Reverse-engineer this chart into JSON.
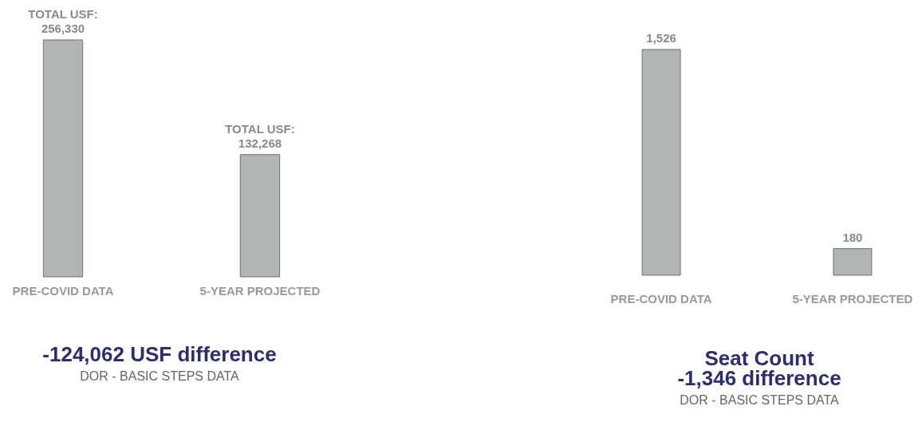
{
  "chart_data": [
    {
      "type": "bar",
      "categories": [
        "PRE-COVID DATA",
        "5-YEAR PROJECTED"
      ],
      "values": [
        256330,
        132268
      ],
      "color": "#b2b5b5",
      "value_labels": [
        "TOTAL USF:\n256,330",
        "TOTAL USF:\n132,268"
      ],
      "annotations": [
        "-124,062 USF difference",
        "DOR - BASIC STEPS DATA"
      ]
    },
    {
      "type": "bar",
      "categories": [
        "PRE-COVID DATA",
        "5-YEAR PROJECTED"
      ],
      "values": [
        1526,
        180
      ],
      "color": "#b2b5b5",
      "value_labels": [
        "1,526",
        "180"
      ],
      "annotations": [
        "Seat Count",
        "-1,346 difference",
        "DOR - BASIC STEPS DATA"
      ]
    }
  ]
}
